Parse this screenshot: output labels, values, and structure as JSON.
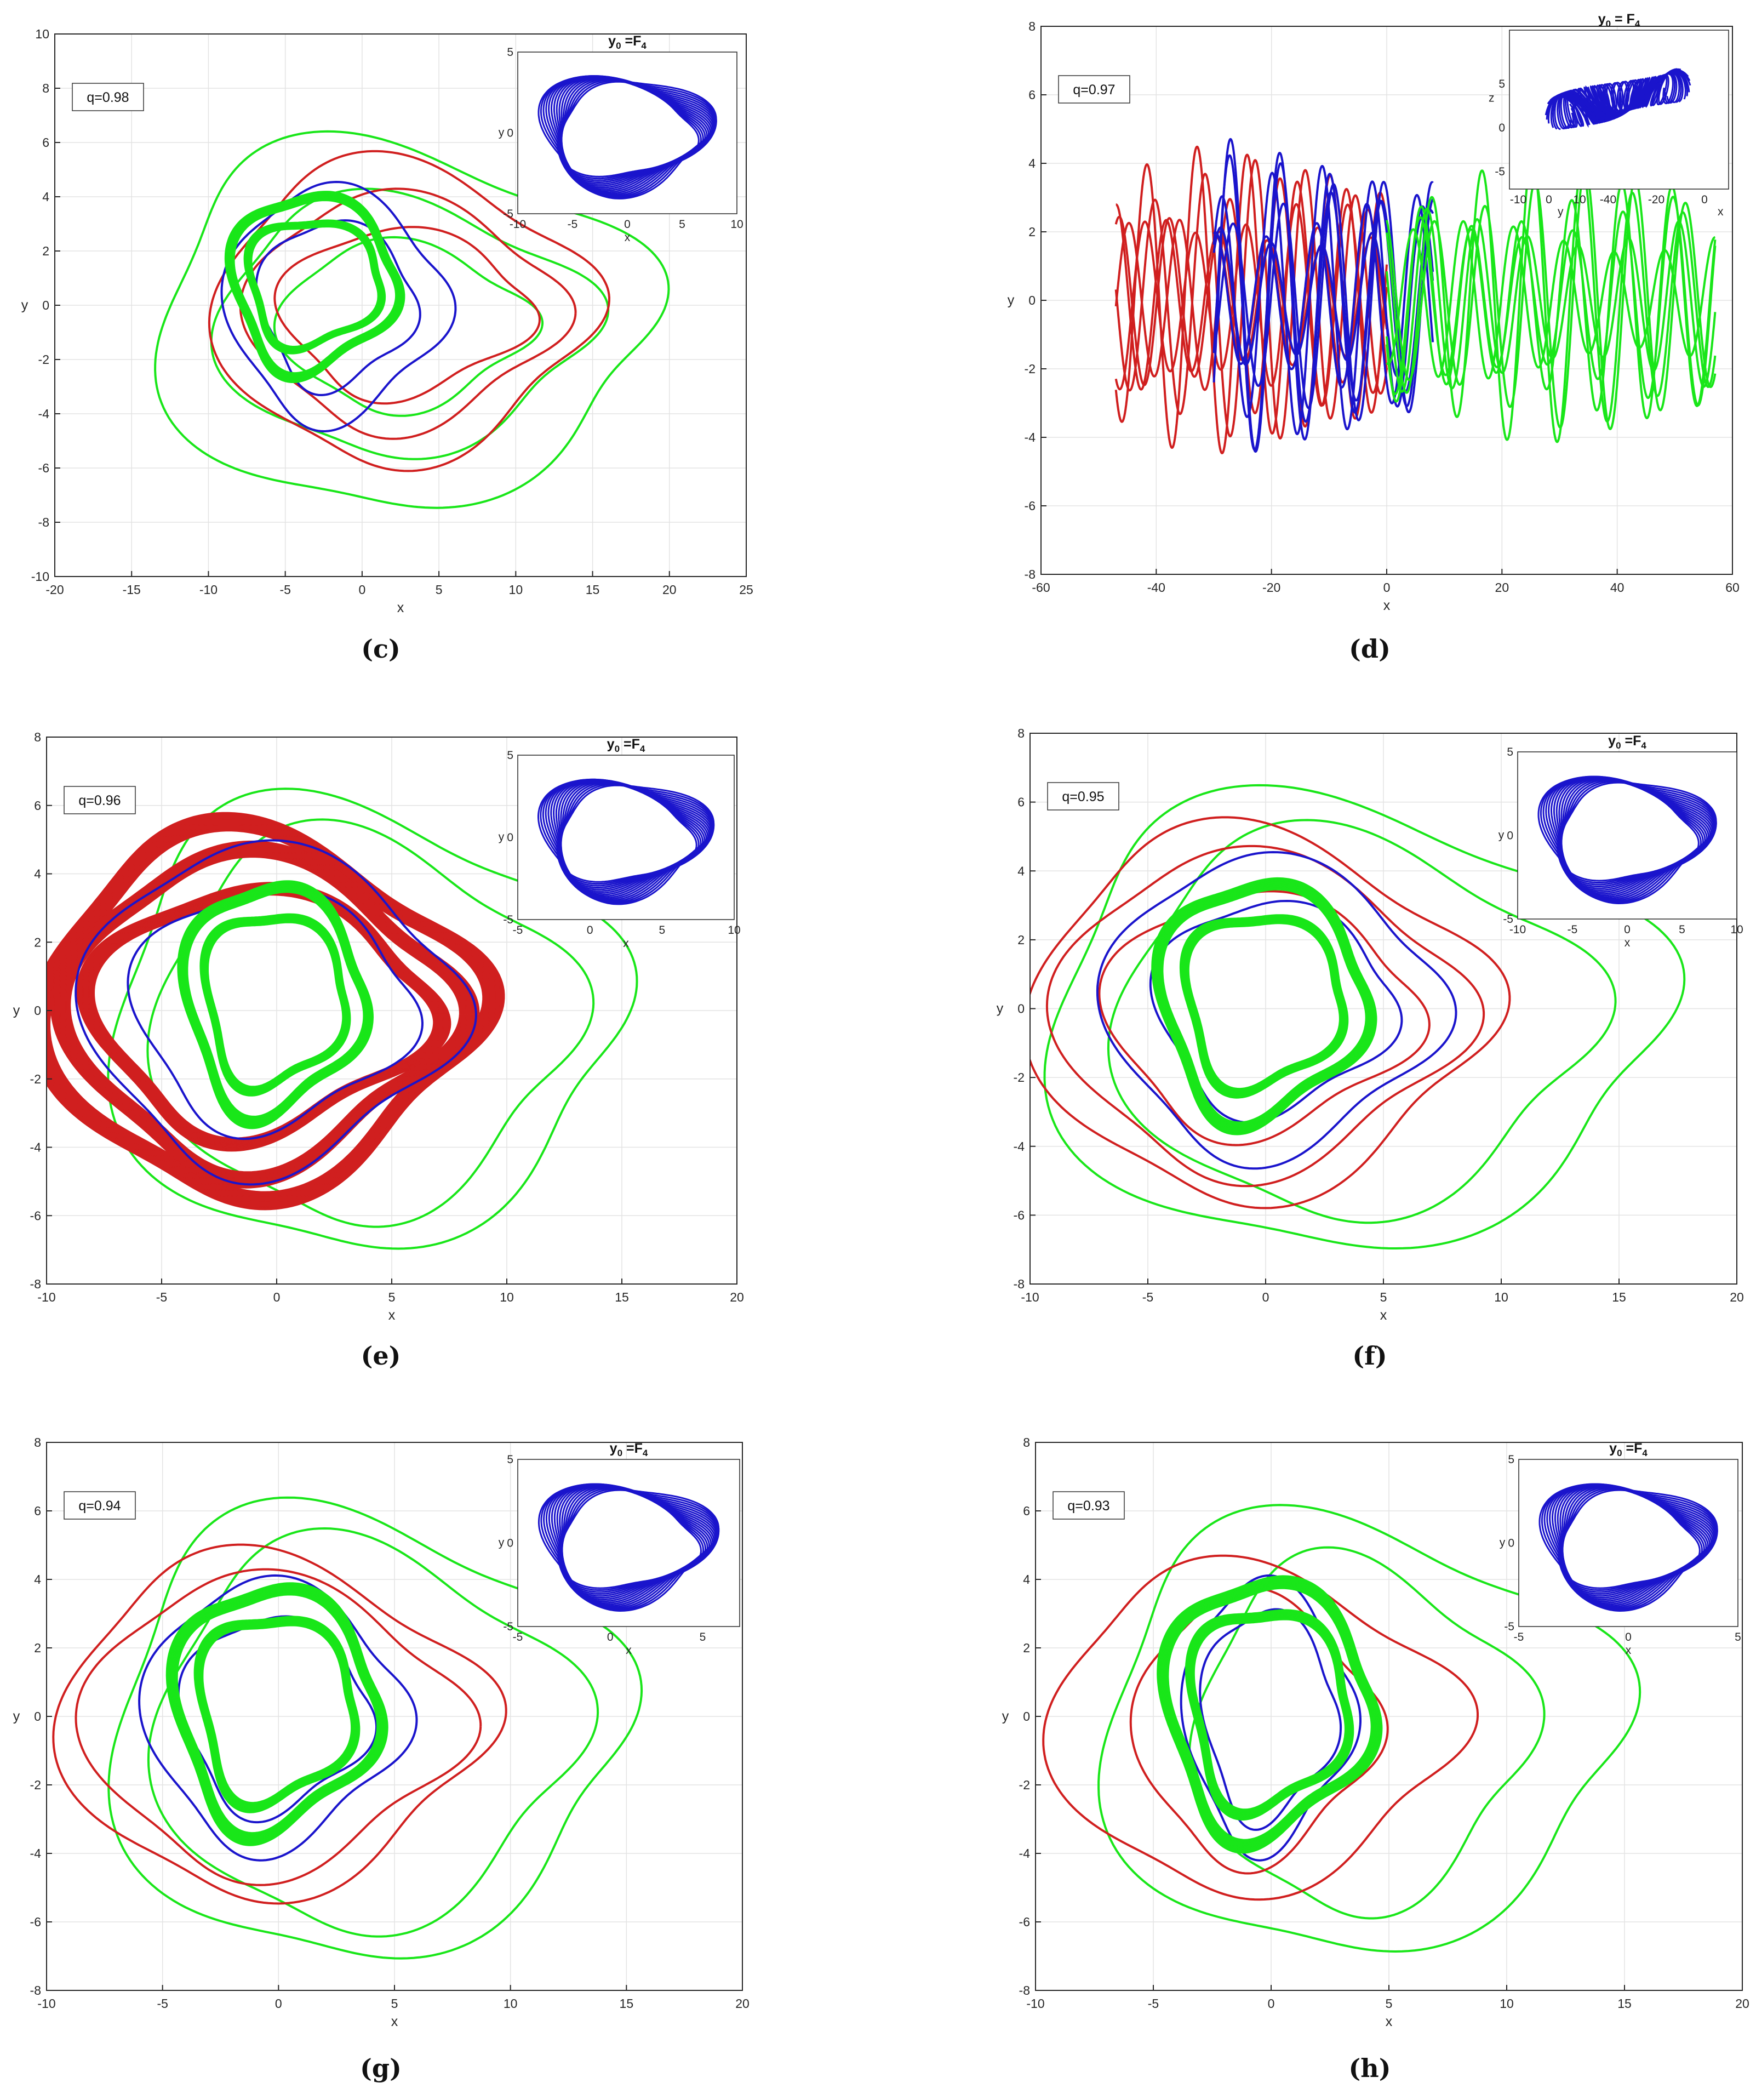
{
  "colors": {
    "red": "#d01f1f",
    "green": "#19e619",
    "blue": "#1a14cc",
    "grid": "#e3e3e3",
    "axis": "#262626"
  },
  "chart_data": [
    {
      "type": "line",
      "panel": "c",
      "caption": "(c)",
      "annotation": "q=0.98",
      "xlabel": "x",
      "ylabel": "y",
      "xlim": [
        -20,
        25
      ],
      "ylim": [
        -10,
        10
      ],
      "xticks": [
        -20,
        -15,
        -10,
        -5,
        0,
        5,
        10,
        15,
        20,
        25
      ],
      "yticks": [
        -10,
        -8,
        -6,
        -4,
        -2,
        0,
        2,
        4,
        6,
        8,
        10
      ],
      "grid": true,
      "series": [
        {
          "color": "green",
          "rx": [
            16,
            12,
            8
          ],
          "ry": [
            6.6,
            4.6,
            3.0
          ],
          "cx": 3,
          "cy": -0.8
        },
        {
          "color": "red",
          "rx": [
            12,
            10,
            8
          ],
          "ry": [
            5.4,
            4.2,
            3.0
          ],
          "cx": 3,
          "cy": -0.3
        },
        {
          "color": "blue",
          "rx": [
            7,
            5
          ],
          "ry": [
            4.2,
            3.0
          ],
          "cx": -1.5,
          "cy": 0
        },
        {
          "color": "green",
          "rx": [
            5.5,
            4.5
          ],
          "ry": [
            3.3,
            2.4
          ],
          "cx": -3,
          "cy": 0.8,
          "thick": true
        }
      ],
      "inset": {
        "title": "y",
        "title_sub": "0",
        "title_mid": " =F",
        "title_sub2": "4",
        "xlabel": "x",
        "ylabel": "y",
        "xlim": [
          -10,
          10
        ],
        "ylim": [
          -5,
          5
        ],
        "xticks": [
          -10,
          -5,
          0,
          5,
          10
        ],
        "yticks": [
          -5,
          0,
          5
        ]
      }
    },
    {
      "type": "line",
      "panel": "d",
      "caption": "(d)",
      "annotation": "q=0.97",
      "xlabel": "x",
      "ylabel": "y",
      "xlim": [
        -60,
        60
      ],
      "ylim": [
        -8,
        8
      ],
      "xticks": [
        -60,
        -40,
        -20,
        0,
        20,
        40,
        60
      ],
      "yticks": [
        -8,
        -6,
        -4,
        -2,
        0,
        2,
        4,
        6,
        8
      ],
      "grid": true,
      "series": [
        {
          "color": "red",
          "band": [
            -47,
            0
          ],
          "amp": 4.5
        },
        {
          "color": "blue",
          "band": [
            -30,
            8
          ],
          "amp": 4.8
        },
        {
          "color": "green",
          "band": [
            0,
            57
          ],
          "amp": 4.2
        }
      ],
      "inset": {
        "title": "y",
        "title_sub": "0",
        "title_mid": " = F",
        "title_sub2": "4",
        "xlabel": "x",
        "ylabel": "y",
        "zlabel": "z",
        "xticks": [
          -40,
          -20,
          0
        ],
        "yticks": [
          -10,
          0,
          10
        ],
        "zticks": [
          -5,
          0,
          5
        ],
        "is3d": true
      }
    },
    {
      "type": "line",
      "panel": "e",
      "caption": "(e)",
      "annotation": "q=0.96",
      "xlabel": "x",
      "ylabel": "y",
      "xlim": [
        -10,
        20
      ],
      "ylim": [
        -8,
        8
      ],
      "xticks": [
        -10,
        -5,
        0,
        5,
        10,
        15,
        20
      ],
      "yticks": [
        -8,
        -6,
        -4,
        -2,
        0,
        2,
        4,
        6,
        8
      ],
      "grid": true,
      "series": [
        {
          "color": "green",
          "rx": [
            11,
            9
          ],
          "ry": [
            6.4,
            5.5
          ],
          "cx": 4,
          "cy": -0.5
        },
        {
          "color": "red",
          "rx": [
            9.5,
            8.5,
            7.5
          ],
          "ry": [
            5.3,
            4.6,
            3.6
          ],
          "cx": -0.5,
          "cy": -0.1,
          "thick": true
        },
        {
          "color": "blue",
          "rx": [
            8,
            6
          ],
          "ry": [
            4.6,
            3.4
          ],
          "cx": 0,
          "cy": 0
        },
        {
          "color": "green",
          "rx": [
            4,
            3.2
          ],
          "ry": [
            3.4,
            2.6
          ],
          "cx": 0,
          "cy": 0.3,
          "thick": true
        }
      ],
      "inset": {
        "title": "y",
        "title_sub": "0",
        "title_mid": " =F",
        "title_sub2": "4",
        "xlabel": "x",
        "ylabel": "y",
        "xlim": [
          -5,
          10
        ],
        "ylim": [
          -5,
          5
        ],
        "xticks": [
          -5,
          0,
          5,
          10
        ],
        "yticks": [
          -5,
          0,
          5
        ]
      }
    },
    {
      "type": "line",
      "panel": "f",
      "caption": "(f)",
      "annotation": "q=0.95",
      "xlabel": "x",
      "ylabel": "y",
      "xlim": [
        -10,
        20
      ],
      "ylim": [
        -8,
        8
      ],
      "xticks": [
        -10,
        -5,
        0,
        5,
        10,
        15,
        20
      ],
      "yticks": [
        -8,
        -6,
        -4,
        -2,
        0,
        2,
        4,
        6,
        8
      ],
      "grid": true,
      "series": [
        {
          "color": "green",
          "rx": [
            13,
            10
          ],
          "ry": [
            6.4,
            5.4
          ],
          "cx": 4,
          "cy": -0.5
        },
        {
          "color": "red",
          "rx": [
            9.5,
            8.5,
            6.5
          ],
          "ry": [
            5.2,
            4.5,
            3.4
          ],
          "cx": 0,
          "cy": -0.2
        },
        {
          "color": "blue",
          "rx": [
            7,
            5
          ],
          "ry": [
            4.2,
            3.0
          ],
          "cx": 0.5,
          "cy": 0
        },
        {
          "color": "green",
          "rx": [
            4.5,
            3.5
          ],
          "ry": [
            3.5,
            2.6
          ],
          "cx": 0,
          "cy": 0.2,
          "thick": true
        }
      ],
      "inset": {
        "title": "y",
        "title_sub": "0",
        "title_mid": " =F",
        "title_sub2": "4",
        "xlabel": "x",
        "ylabel": "y",
        "xlim": [
          -10,
          10
        ],
        "ylim": [
          -5,
          5
        ],
        "xticks": [
          -10,
          -5,
          0,
          5,
          10
        ],
        "yticks": [
          -5,
          0,
          5
        ]
      }
    },
    {
      "type": "line",
      "panel": "g",
      "caption": "(g)",
      "annotation": "q=0.94",
      "xlabel": "x",
      "ylabel": "y",
      "xlim": [
        -10,
        20
      ],
      "ylim": [
        -8,
        8
      ],
      "xticks": [
        -10,
        -5,
        0,
        5,
        10,
        15,
        20
      ],
      "yticks": [
        -8,
        -6,
        -4,
        -2,
        0,
        2,
        4,
        6,
        8
      ],
      "grid": true,
      "series": [
        {
          "color": "green",
          "rx": [
            11,
            9
          ],
          "ry": [
            6.4,
            5.5
          ],
          "cx": 4,
          "cy": -0.6
        },
        {
          "color": "red",
          "rx": [
            9,
            8
          ],
          "ry": [
            4.8,
            4.2
          ],
          "cx": 0,
          "cy": -0.3
        },
        {
          "color": "blue",
          "rx": [
            5.5,
            4
          ],
          "ry": [
            3.8,
            2.8
          ],
          "cx": 0,
          "cy": 0
        },
        {
          "color": "green",
          "rx": [
            4.5,
            3.5
          ],
          "ry": [
            3.6,
            2.8
          ],
          "cx": 0,
          "cy": 0.2,
          "thick": true
        }
      ],
      "inset": {
        "title": "y",
        "title_sub": "0",
        "title_mid": " =F",
        "title_sub2": "4",
        "xlabel": "x",
        "ylabel": "y",
        "xlim": [
          -5,
          7
        ],
        "ylim": [
          -5,
          5
        ],
        "xticks": [
          -5,
          0,
          5
        ],
        "yticks": [
          -5,
          0,
          5
        ]
      }
    },
    {
      "type": "line",
      "panel": "h",
      "caption": "(h)",
      "annotation": "q=0.93",
      "xlabel": "x",
      "ylabel": "y",
      "xlim": [
        -10,
        20
      ],
      "ylim": [
        -8,
        8
      ],
      "xticks": [
        -10,
        -5,
        0,
        5,
        10,
        15,
        20
      ],
      "yticks": [
        -8,
        -6,
        -4,
        -2,
        0,
        2,
        4,
        6,
        8
      ],
      "grid": true,
      "series": [
        {
          "color": "green",
          "rx": [
            11,
            7
          ],
          "ry": [
            6.2,
            5.0
          ],
          "cx": 4,
          "cy": -0.6
        },
        {
          "color": "red",
          "rx": [
            8.5,
            5
          ],
          "ry": [
            4.6,
            3.8
          ],
          "cx": -0.5,
          "cy": -0.4
        },
        {
          "color": "blue",
          "rx": [
            3.5,
            2.8
          ],
          "ry": [
            3.8,
            3.0
          ],
          "cx": 0,
          "cy": 0
        },
        {
          "color": "green",
          "rx": [
            4.5,
            3.5
          ],
          "ry": [
            3.8,
            3.0
          ],
          "cx": 0,
          "cy": 0.2,
          "thick": true
        }
      ],
      "inset": {
        "title": "y",
        "title_sub": "0",
        "title_mid": " =F",
        "title_sub2": "4",
        "xlabel": "x",
        "ylabel": "y",
        "xlim": [
          -5,
          5
        ],
        "ylim": [
          -5,
          5
        ],
        "xticks": [
          -5,
          0,
          5
        ],
        "yticks": [
          -5,
          0,
          5
        ]
      }
    }
  ]
}
